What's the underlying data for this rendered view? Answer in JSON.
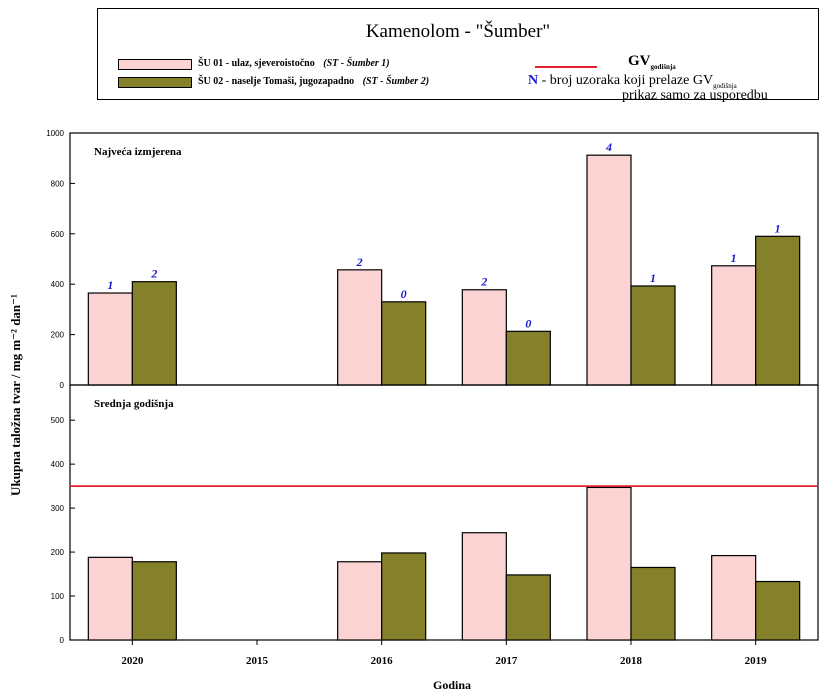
{
  "legend": {
    "title": "Kamenolom - \"Šumber\"",
    "series1_label": "ŠU 01 - ulaz, sjeveroistočno",
    "series1_tag": "(ST - Šumber 1)",
    "series2_label": "ŠU 02 - naselje Tomaši, jugozapadno",
    "series2_tag": "(ST - Šumber 2)",
    "gv_label": "GV",
    "gv_sub": "godišnja",
    "n_letter": "N",
    "n_text": " - broj uzoraka koji prelaze GV",
    "n_sub": "godišnja",
    "note": "prikaz samo za usporedbu"
  },
  "colors": {
    "series1": "#fbd3d3",
    "series2": "#85802a",
    "gv_line": "#e0202c",
    "count_labels": "#1a1ad0"
  },
  "chart_data": [
    {
      "type": "bar",
      "title": "Najveća izmjerena",
      "categories": [
        "2020",
        "2015",
        "2016",
        "2017",
        "2018",
        "2019"
      ],
      "series": [
        {
          "name": "ŠU 01 - ulaz, sjeveroistočno (ST - Šumber 1)",
          "values": [
            365,
            null,
            457,
            378,
            912,
            473
          ],
          "counts": [
            "1",
            null,
            "2",
            "2",
            "4",
            "1"
          ]
        },
        {
          "name": "ŠU 02 - naselje Tomaši, jugozapadno (ST - Šumber 2)",
          "values": [
            410,
            null,
            330,
            213,
            393,
            590
          ],
          "counts": [
            "2",
            null,
            "0",
            "0",
            "1",
            "1"
          ]
        }
      ],
      "yticks": [
        0,
        200,
        400,
        600,
        800,
        1000
      ],
      "ylim": [
        0,
        1000
      ]
    },
    {
      "type": "bar",
      "title": "Srednja godišnja",
      "categories": [
        "2020",
        "2015",
        "2016",
        "2017",
        "2018",
        "2019"
      ],
      "series": [
        {
          "name": "ŠU 01 - ulaz, sjeveroistočno (ST - Šumber 1)",
          "values": [
            188,
            null,
            178,
            244,
            347,
            192
          ]
        },
        {
          "name": "ŠU 02 - naselje Tomaši, jugozapadno (ST - Šumber 2)",
          "values": [
            178,
            null,
            198,
            148,
            165,
            133
          ]
        }
      ],
      "gv": 350,
      "yticks": [
        0,
        100,
        200,
        300,
        400,
        500
      ],
      "ylim": [
        0,
        580
      ]
    }
  ],
  "axes": {
    "ylabel": "Ukupna taložna tvar / mg m⁻² dan⁻¹",
    "xlabel": "Godina",
    "xtick_labels": [
      "2020",
      "2015",
      "2016",
      "2017",
      "2018",
      "2019"
    ]
  }
}
